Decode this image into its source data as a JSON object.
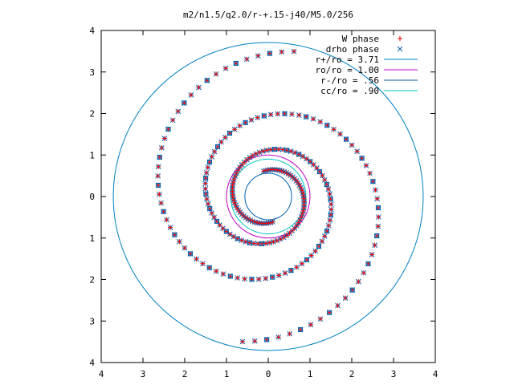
{
  "chart_data": {
    "type": "scatter",
    "title": "m2/n1.5/q2.0/r-+.15-j40/M5.0/256",
    "xlabel": "",
    "ylabel": "",
    "xlim": [
      -4,
      4
    ],
    "ylim": [
      -4,
      4
    ],
    "x_ticks": [
      -4,
      -3,
      -2,
      -1,
      0,
      1,
      2,
      3,
      4
    ],
    "y_ticks": [
      -4,
      -3,
      -2,
      -1,
      0,
      1,
      2,
      3,
      4
    ],
    "x_tick_labels": [
      "4",
      "3",
      "2",
      "1",
      "0",
      "1",
      "2",
      "3",
      "4"
    ],
    "y_tick_labels": [
      "4",
      "3",
      "2",
      "1",
      "0",
      "1",
      "2",
      "3",
      "4"
    ],
    "grid": false,
    "legend_position": "top-right",
    "legend": [
      {
        "label": "W phase",
        "marker": "plus",
        "color": "#ff0000"
      },
      {
        "label": "drho phase",
        "marker": "cross",
        "color": "#0060ad"
      },
      {
        "label": "r+/ro = 3.71",
        "line": true,
        "color": "#0080c0"
      },
      {
        "label": "ro/ro = 1.00",
        "line": true,
        "color": "#c000c0"
      },
      {
        "label": "r-/ro = .56",
        "line": true,
        "color": "#0060ad"
      },
      {
        "label": "cc/ro = .90",
        "line": true,
        "color": "#00c0c0"
      }
    ],
    "circles": [
      {
        "name": "r+/ro = 3.71",
        "radius": 3.71,
        "color": "#0080c0"
      },
      {
        "name": "ro/ro = 1.00",
        "radius": 1.0,
        "color": "#c000c0"
      },
      {
        "name": "r-/ro = .56",
        "radius": 0.56,
        "color": "#0060ad"
      },
      {
        "name": "cc/ro = .90",
        "radius": 0.9,
        "color": "#00c0c0"
      }
    ],
    "spiral": {
      "arms": 2,
      "inner_radius": 0.62,
      "outer_radius": 3.55,
      "arm1_start_angle_deg": 100,
      "arm2_start_angle_deg": 280,
      "turn_deg": 560
    },
    "series": [
      {
        "name": "W phase",
        "marker": "plus",
        "color": "#ff0000"
      },
      {
        "name": "drho phase",
        "marker": "cross",
        "color": "#0060ad"
      }
    ],
    "colors": {
      "w_phase": "#ff0000",
      "drho_phase": "#0060ad",
      "box_marker": "#0060ad",
      "frame": "#000000"
    }
  }
}
